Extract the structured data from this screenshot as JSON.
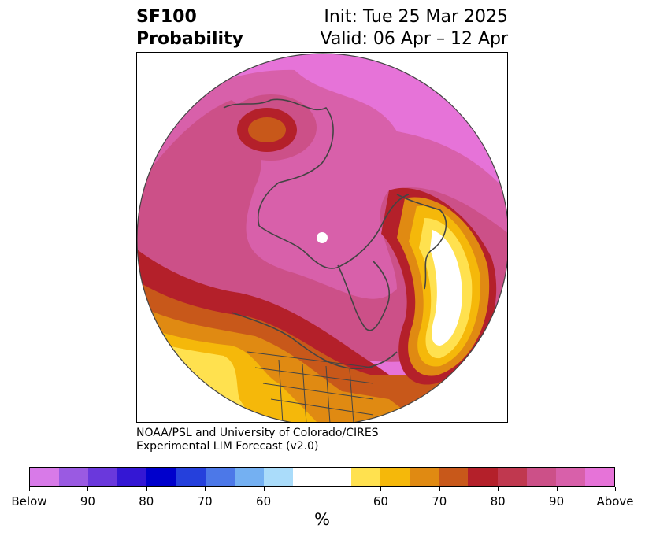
{
  "header": {
    "variable": "SF100",
    "product": "Probability",
    "init": "Init: Tue 25 Mar 2025",
    "valid": "Valid: 06 Apr – 12 Apr"
  },
  "credit": {
    "line1": "NOAA/PSL and University of Colorado/CIRES",
    "line2": "Experimental LIM Forecast (v2.0)"
  },
  "colorbar": {
    "unit": "%",
    "colors": [
      "#d87ae8",
      "#9a5ae2",
      "#6a38dc",
      "#3417d4",
      "#0000cc",
      "#2540dc",
      "#4c78e8",
      "#74b0f2",
      "#aadcfa",
      "#ffffff",
      "#ffe14f",
      "#f5b80a",
      "#e08a12",
      "#c8581a",
      "#b4202a",
      "#c0384f",
      "#cc5088",
      "#d860aa",
      "#e673d8"
    ],
    "labels": [
      "Below",
      "90",
      "80",
      "70",
      "60",
      "60",
      "70",
      "80",
      "90",
      "Above"
    ]
  },
  "map": {
    "projection": "polar stereographic",
    "background_fill": "#e673d8",
    "legend_below": "Below",
    "legend_above": "Above"
  }
}
